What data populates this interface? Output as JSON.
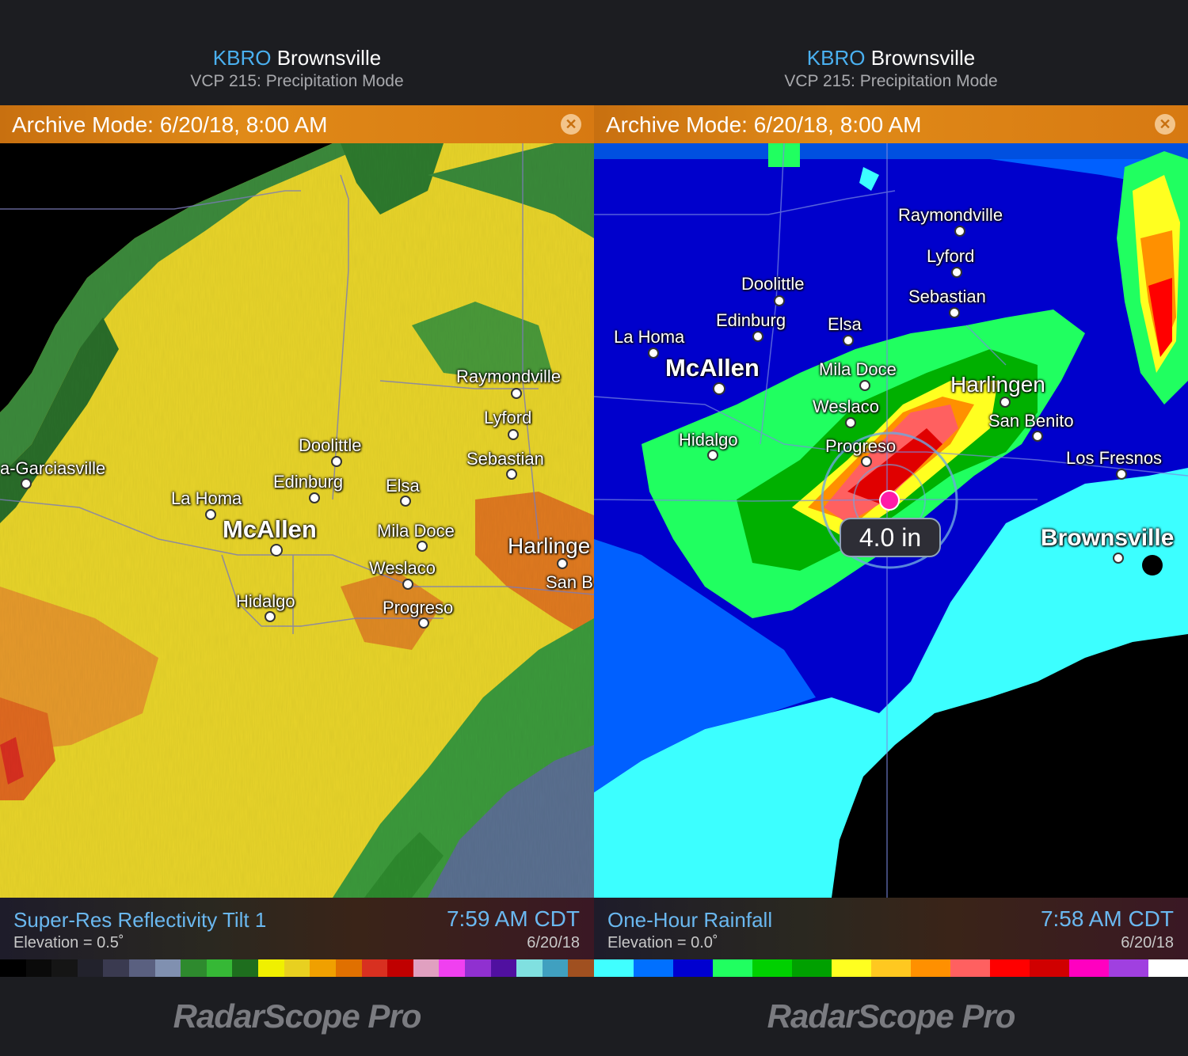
{
  "left": {
    "station_id": "KBRO",
    "station_name": "Brownsville",
    "mode": "VCP 215: Precipitation Mode",
    "archive": "Archive Mode: 6/20/18, 8:00 AM",
    "product": "Super-Res Reflectivity Tilt 1",
    "elevation": "Elevation = 0.5˚",
    "time": "7:59 AM CDT",
    "date": "6/20/18",
    "cities": [
      {
        "name": "Raymondville"
      },
      {
        "name": "Lyford"
      },
      {
        "name": "Sebastian"
      },
      {
        "name": "Doolittle"
      },
      {
        "name": "a-Garciasville"
      },
      {
        "name": "Edinburg"
      },
      {
        "name": "Elsa"
      },
      {
        "name": "La Homa"
      },
      {
        "name": "McAllen"
      },
      {
        "name": "Mila Doce"
      },
      {
        "name": "Harlinge"
      },
      {
        "name": "Weslaco"
      },
      {
        "name": "San B"
      },
      {
        "name": "Hidalgo"
      },
      {
        "name": "Progreso"
      }
    ],
    "scale_colors": [
      "#000000",
      "#0a0a0a",
      "#151515",
      "#22222c",
      "#3a3a50",
      "#5a6080",
      "#8090b0",
      "#2e8a2e",
      "#36b836",
      "#1e6e1e",
      "#f0f000",
      "#e8d020",
      "#f0a000",
      "#e07000",
      "#d83020",
      "#c00000",
      "#e0a0c0",
      "#f040f0",
      "#9030d0",
      "#5010a0",
      "#80e0e0",
      "#40a0c0",
      "#a05020"
    ]
  },
  "right": {
    "station_id": "KBRO",
    "station_name": "Brownsville",
    "mode": "VCP 215: Precipitation Mode",
    "archive": "Archive Mode: 6/20/18, 8:00 AM",
    "product": "One-Hour Rainfall",
    "elevation": "Elevation = 0.0˚",
    "time": "7:58 AM CDT",
    "date": "6/20/18",
    "readout": "4.0 in",
    "cities": [
      {
        "name": "Raymondville"
      },
      {
        "name": "Lyford"
      },
      {
        "name": "Doolittle"
      },
      {
        "name": "Sebastian"
      },
      {
        "name": "Edinburg"
      },
      {
        "name": "Elsa"
      },
      {
        "name": "La Homa"
      },
      {
        "name": "McAllen"
      },
      {
        "name": "Mila Doce"
      },
      {
        "name": "Harlingen"
      },
      {
        "name": "Weslaco"
      },
      {
        "name": "San Benito"
      },
      {
        "name": "Hidalgo"
      },
      {
        "name": "Progreso"
      },
      {
        "name": "Los Fresnos"
      },
      {
        "name": "Brownsville"
      }
    ],
    "scale_colors": [
      "#40ffff",
      "#0070ff",
      "#0000d0",
      "#20ff60",
      "#00d000",
      "#00a000",
      "#ffff20",
      "#ffc820",
      "#ff9000",
      "#ff6060",
      "#ff0000",
      "#d00000",
      "#ff00c0",
      "#a040e0",
      "#ffffff"
    ]
  },
  "brand": "RadarScope Pro"
}
